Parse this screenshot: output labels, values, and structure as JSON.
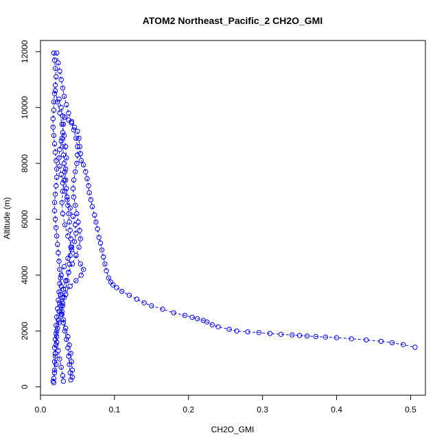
{
  "chart_data": {
    "type": "scatter",
    "title": "ATOM2 Northeast_Pacific_2 CH2O_GMI",
    "xlabel": "CH2O_GMI",
    "ylabel": "Altitude (m)",
    "xlim": [
      0,
      0.52
    ],
    "ylim": [
      -300,
      12400
    ],
    "x_ticks": [
      {
        "value": 0.0,
        "label": "0.0"
      },
      {
        "value": 0.1,
        "label": "0.1"
      },
      {
        "value": 0.2,
        "label": "0.2"
      },
      {
        "value": 0.3,
        "label": "0.3"
      },
      {
        "value": 0.4,
        "label": "0.4"
      },
      {
        "value": 0.5,
        "label": "0.5"
      }
    ],
    "y_ticks": [
      {
        "value": 0,
        "label": "0"
      },
      {
        "value": 2000,
        "label": "2000"
      },
      {
        "value": 4000,
        "label": "4000"
      },
      {
        "value": 6000,
        "label": "6000"
      },
      {
        "value": 8000,
        "label": "8000"
      },
      {
        "value": 10000,
        "label": "10000"
      },
      {
        "value": 12000,
        "label": "12000"
      }
    ],
    "color": "#0000ff",
    "marker": "open-circle",
    "line_style": "dashed",
    "grid": false,
    "legend": "none",
    "series": [
      {
        "points": [
          [
            0.018,
            11950
          ],
          [
            0.019,
            11700
          ],
          [
            0.02,
            11400
          ],
          [
            0.021,
            11100
          ],
          [
            0.02,
            10800
          ],
          [
            0.019,
            10500
          ],
          [
            0.018,
            10200
          ],
          [
            0.018,
            9900
          ],
          [
            0.017,
            9600
          ],
          [
            0.017,
            9300
          ],
          [
            0.018,
            9000
          ],
          [
            0.019,
            8700
          ],
          [
            0.02,
            8400
          ],
          [
            0.021,
            8100
          ],
          [
            0.022,
            7800
          ],
          [
            0.022,
            7500
          ],
          [
            0.021,
            7200
          ],
          [
            0.02,
            6900
          ],
          [
            0.019,
            6600
          ],
          [
            0.019,
            6300
          ],
          [
            0.02,
            6000
          ],
          [
            0.021,
            5700
          ],
          [
            0.022,
            5400
          ],
          [
            0.023,
            5100
          ],
          [
            0.024,
            4800
          ],
          [
            0.025,
            4500
          ],
          [
            0.026,
            4200
          ],
          [
            0.027,
            3900
          ],
          [
            0.028,
            3600
          ],
          [
            0.027,
            3300
          ],
          [
            0.026,
            3000
          ],
          [
            0.025,
            2700
          ],
          [
            0.024,
            2400
          ],
          [
            0.023,
            2100
          ],
          [
            0.022,
            1800
          ],
          [
            0.021,
            1500
          ],
          [
            0.02,
            1200
          ],
          [
            0.019,
            900
          ],
          [
            0.019,
            600
          ],
          [
            0.018,
            300
          ],
          [
            0.018,
            150
          ]
        ]
      },
      {
        "points": [
          [
            0.022,
            11950
          ],
          [
            0.024,
            11600
          ],
          [
            0.026,
            11300
          ],
          [
            0.028,
            11000
          ],
          [
            0.03,
            10700
          ],
          [
            0.032,
            10400
          ],
          [
            0.035,
            10100
          ],
          [
            0.038,
            9800
          ],
          [
            0.042,
            9500
          ],
          [
            0.045,
            9200
          ],
          [
            0.048,
            8900
          ],
          [
            0.05,
            8600
          ],
          [
            0.05,
            8300
          ],
          [
            0.049,
            8000
          ],
          [
            0.047,
            7700
          ],
          [
            0.045,
            7400
          ],
          [
            0.044,
            7100
          ],
          [
            0.045,
            6800
          ],
          [
            0.047,
            6500
          ],
          [
            0.049,
            6200
          ],
          [
            0.051,
            5900
          ],
          [
            0.053,
            5600
          ],
          [
            0.054,
            5300
          ],
          [
            0.052,
            5000
          ],
          [
            0.048,
            4700
          ],
          [
            0.043,
            4400
          ],
          [
            0.038,
            4100
          ],
          [
            0.034,
            3800
          ],
          [
            0.031,
            3500
          ],
          [
            0.029,
            3200
          ],
          [
            0.028,
            2900
          ],
          [
            0.029,
            2600
          ],
          [
            0.031,
            2300
          ],
          [
            0.033,
            2000
          ],
          [
            0.035,
            1700
          ],
          [
            0.037,
            1400
          ],
          [
            0.038,
            1100
          ],
          [
            0.039,
            800
          ],
          [
            0.04,
            500
          ],
          [
            0.041,
            250
          ]
        ]
      },
      {
        "points": [
          [
            0.02,
            10600
          ],
          [
            0.023,
            10200
          ],
          [
            0.026,
            9800
          ],
          [
            0.029,
            9400
          ],
          [
            0.032,
            9000
          ],
          [
            0.034,
            8600
          ],
          [
            0.035,
            8200
          ],
          [
            0.034,
            7800
          ],
          [
            0.032,
            7400
          ],
          [
            0.03,
            7000
          ],
          [
            0.029,
            6600
          ],
          [
            0.03,
            6200
          ],
          [
            0.033,
            5800
          ],
          [
            0.037,
            5400
          ],
          [
            0.042,
            5000
          ],
          [
            0.048,
            4700
          ],
          [
            0.054,
            4400
          ],
          [
            0.058,
            4200
          ],
          [
            0.055,
            4000
          ],
          [
            0.048,
            3800
          ],
          [
            0.04,
            3600
          ],
          [
            0.034,
            3300
          ],
          [
            0.03,
            3000
          ],
          [
            0.029,
            2700
          ],
          [
            0.031,
            2400
          ],
          [
            0.034,
            2100
          ],
          [
            0.037,
            1800
          ],
          [
            0.039,
            1500
          ],
          [
            0.041,
            1200
          ],
          [
            0.042,
            900
          ],
          [
            0.043,
            600
          ],
          [
            0.043,
            350
          ]
        ]
      },
      {
        "points": [
          [
            0.025,
            10300
          ],
          [
            0.028,
            10000
          ],
          [
            0.03,
            9700
          ],
          [
            0.031,
            9400
          ],
          [
            0.03,
            9100
          ],
          [
            0.028,
            8800
          ],
          [
            0.026,
            8500
          ],
          [
            0.025,
            8200
          ],
          [
            0.026,
            7900
          ],
          [
            0.028,
            7600
          ],
          [
            0.03,
            7300
          ],
          [
            0.033,
            7000
          ],
          [
            0.036,
            6700
          ],
          [
            0.04,
            6400
          ],
          [
            0.044,
            6100
          ],
          [
            0.047,
            5800
          ],
          [
            0.048,
            5500
          ],
          [
            0.046,
            5200
          ],
          [
            0.042,
            4900
          ],
          [
            0.037,
            4600
          ],
          [
            0.032,
            4300
          ],
          [
            0.028,
            4000
          ],
          [
            0.026,
            3700
          ],
          [
            0.025,
            3400
          ],
          [
            0.024,
            3100
          ],
          [
            0.023,
            2800
          ],
          [
            0.022,
            2500
          ],
          [
            0.021,
            2200
          ],
          [
            0.021,
            1900
          ],
          [
            0.022,
            1600
          ],
          [
            0.024,
            1300
          ],
          [
            0.026,
            1000
          ],
          [
            0.028,
            700
          ],
          [
            0.03,
            400
          ],
          [
            0.031,
            200
          ]
        ]
      },
      {
        "points": [
          [
            0.033,
            9650
          ],
          [
            0.038,
            9550
          ],
          [
            0.042,
            9450
          ],
          [
            0.046,
            9300
          ],
          [
            0.05,
            9150
          ],
          [
            0.052,
            8900
          ],
          [
            0.053,
            8600
          ],
          [
            0.054,
            8350
          ],
          [
            0.055,
            8100
          ],
          [
            0.058,
            7950
          ],
          [
            0.061,
            7700
          ],
          [
            0.063,
            7450
          ],
          [
            0.065,
            7200
          ],
          [
            0.066,
            6950
          ],
          [
            0.068,
            6700
          ],
          [
            0.07,
            6450
          ],
          [
            0.073,
            6150
          ],
          [
            0.075,
            5900
          ],
          [
            0.077,
            5650
          ],
          [
            0.079,
            5350
          ],
          [
            0.081,
            5150
          ],
          [
            0.083,
            4900
          ],
          [
            0.085,
            4650
          ],
          [
            0.087,
            4400
          ],
          [
            0.089,
            4150
          ],
          [
            0.092,
            3900
          ],
          [
            0.095,
            3750
          ],
          [
            0.098,
            3650
          ],
          [
            0.103,
            3550
          ],
          [
            0.11,
            3420
          ],
          [
            0.12,
            3280
          ],
          [
            0.13,
            3140
          ],
          [
            0.14,
            3010
          ],
          [
            0.15,
            2900
          ],
          [
            0.165,
            2780
          ],
          [
            0.18,
            2650
          ],
          [
            0.195,
            2560
          ],
          [
            0.205,
            2490
          ],
          [
            0.212,
            2440
          ],
          [
            0.22,
            2380
          ],
          [
            0.225,
            2320
          ],
          [
            0.232,
            2220
          ],
          [
            0.24,
            2150
          ],
          [
            0.255,
            2060
          ],
          [
            0.265,
            2000
          ],
          [
            0.28,
            1970
          ],
          [
            0.295,
            1940
          ],
          [
            0.31,
            1910
          ],
          [
            0.325,
            1880
          ],
          [
            0.34,
            1860
          ],
          [
            0.35,
            1840
          ],
          [
            0.36,
            1820
          ],
          [
            0.372,
            1800
          ],
          [
            0.385,
            1780
          ],
          [
            0.4,
            1760
          ],
          [
            0.42,
            1720
          ],
          [
            0.44,
            1680
          ],
          [
            0.46,
            1630
          ],
          [
            0.475,
            1580
          ],
          [
            0.49,
            1510
          ],
          [
            0.506,
            1420
          ]
        ]
      },
      {
        "points": [
          [
            0.017,
            200
          ],
          [
            0.019,
            500
          ],
          [
            0.021,
            800
          ],
          [
            0.02,
            1100
          ],
          [
            0.019,
            1400
          ],
          [
            0.02,
            1700
          ],
          [
            0.022,
            2000
          ],
          [
            0.025,
            2300
          ],
          [
            0.028,
            2600
          ],
          [
            0.03,
            2900
          ],
          [
            0.032,
            3200
          ],
          [
            0.034,
            3500
          ],
          [
            0.036,
            3800
          ],
          [
            0.038,
            4100
          ],
          [
            0.039,
            4400
          ],
          [
            0.04,
            4700
          ],
          [
            0.041,
            5000
          ],
          [
            0.041,
            5300
          ],
          [
            0.04,
            5600
          ],
          [
            0.039,
            5900
          ],
          [
            0.038,
            6200
          ],
          [
            0.037,
            6500
          ],
          [
            0.036,
            6800
          ],
          [
            0.035,
            7100
          ],
          [
            0.034,
            7400
          ],
          [
            0.033,
            7700
          ],
          [
            0.032,
            8000
          ],
          [
            0.031,
            8300
          ],
          [
            0.03,
            8600
          ],
          [
            0.029,
            8900
          ]
        ]
      }
    ]
  }
}
